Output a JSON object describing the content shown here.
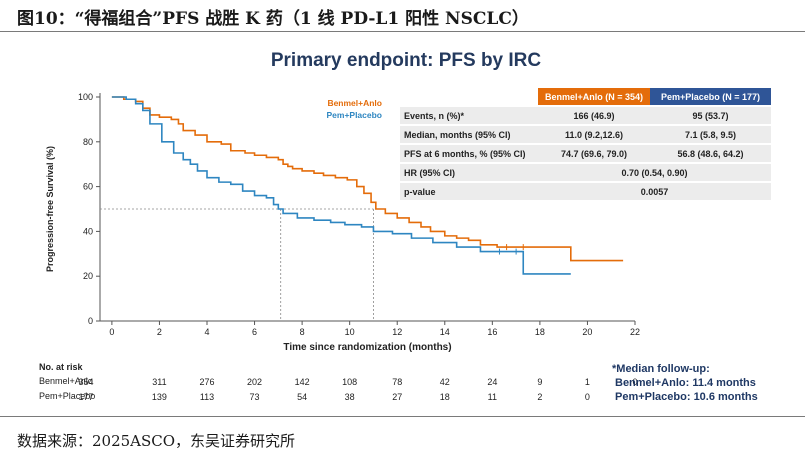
{
  "figure_title": "图10：“得福组合”PFS 战胜 K 药（1 线 PD-L1 阳性 NSCLC）",
  "source": "数据来源：2025ASCO，东吴证券研究所",
  "chart_data": {
    "type": "line",
    "title": "Primary endpoint: PFS by IRC",
    "xlabel": "Time since randomization (months)",
    "ylabel": "Progression-free Survival (%)",
    "xlim": [
      -0.5,
      22
    ],
    "ylim": [
      0,
      100
    ],
    "x_ticks": [
      0,
      2,
      4,
      6,
      8,
      10,
      12,
      14,
      16,
      18,
      20,
      22
    ],
    "y_ticks": [
      0,
      20,
      40,
      60,
      80,
      100
    ],
    "colors": {
      "Benmel+Anlo": "#e46c0a",
      "Pem+Placebo": "#2e86c1"
    },
    "legend": {
      "position": "top-right",
      "entries": [
        "Benmel+Anlo",
        "Pem+Placebo"
      ]
    },
    "reference_lines": {
      "y": 50,
      "medians_x": [
        7.1,
        11.0
      ]
    },
    "series": [
      {
        "name": "Benmel+Anlo",
        "step_points": [
          [
            0,
            100
          ],
          [
            0.5,
            99
          ],
          [
            1,
            98
          ],
          [
            1.3,
            95
          ],
          [
            1.6,
            92
          ],
          [
            2,
            91
          ],
          [
            2.5,
            90
          ],
          [
            2.8,
            88
          ],
          [
            3,
            85
          ],
          [
            3.5,
            83
          ],
          [
            4,
            80
          ],
          [
            4.6,
            79
          ],
          [
            5,
            76
          ],
          [
            5.6,
            75
          ],
          [
            6,
            74
          ],
          [
            6.5,
            73
          ],
          [
            7,
            72
          ],
          [
            7.2,
            70
          ],
          [
            7.4,
            69
          ],
          [
            7.6,
            68
          ],
          [
            8,
            67
          ],
          [
            8.5,
            66
          ],
          [
            8.9,
            65
          ],
          [
            9.4,
            64
          ],
          [
            9.9,
            63
          ],
          [
            10.3,
            60
          ],
          [
            10.6,
            57
          ],
          [
            10.9,
            53
          ],
          [
            11.1,
            50
          ],
          [
            11.5,
            48
          ],
          [
            12,
            46
          ],
          [
            12.5,
            44
          ],
          [
            13,
            42
          ],
          [
            13.4,
            40
          ],
          [
            14,
            38
          ],
          [
            14.5,
            37
          ],
          [
            15,
            36
          ],
          [
            15.5,
            34
          ],
          [
            16.2,
            33
          ],
          [
            19.3,
            33
          ],
          [
            19.3,
            27
          ],
          [
            21.5,
            27
          ]
        ]
      },
      {
        "name": "Pem+Placebo",
        "step_points": [
          [
            0,
            100
          ],
          [
            0.6,
            99
          ],
          [
            1,
            97
          ],
          [
            1.3,
            94
          ],
          [
            1.6,
            88
          ],
          [
            2.1,
            80
          ],
          [
            2.6,
            75
          ],
          [
            3,
            72
          ],
          [
            3.3,
            70
          ],
          [
            3.6,
            67
          ],
          [
            4,
            64
          ],
          [
            4.5,
            62
          ],
          [
            5,
            61
          ],
          [
            5.5,
            58
          ],
          [
            6,
            56
          ],
          [
            6.5,
            55
          ],
          [
            6.8,
            52
          ],
          [
            7,
            50
          ],
          [
            7.2,
            48
          ],
          [
            7.8,
            46
          ],
          [
            8.5,
            45
          ],
          [
            9.2,
            44
          ],
          [
            9.8,
            43
          ],
          [
            10.5,
            42
          ],
          [
            11,
            40
          ],
          [
            11.8,
            39
          ],
          [
            12.6,
            37
          ],
          [
            13.5,
            35
          ],
          [
            14.5,
            33
          ],
          [
            15.5,
            31
          ],
          [
            17.3,
            31
          ],
          [
            17.3,
            21
          ],
          [
            19.3,
            21
          ]
        ]
      }
    ],
    "censor_marks": {
      "Benmel+Anlo": [
        16.6,
        17.3
      ],
      "Pem+Placebo": [
        16.3,
        17.0
      ]
    }
  },
  "summary_table": {
    "headers": [
      "Benmel+Anlo (N  = 354)",
      "Pem+Placebo (N = 177)"
    ],
    "rows": [
      {
        "label": "Events, n (%)*",
        "a": "166 (46.9)",
        "b": "95 (53.7)"
      },
      {
        "label": "Median, months (95% CI)",
        "a": "11.0 (9.2,12.6)",
        "b": "7.1 (5.8, 9.5)"
      },
      {
        "label": "PFS at 6 months, % (95% CI)",
        "a": "74.7 (69.6, 79.0)",
        "b": "56.8 (48.6, 64.2)"
      }
    ],
    "hr": {
      "label": "HR (95% CI)",
      "value": "0.70 (0.54, 0.90)"
    },
    "pvalue": {
      "label": "p-value",
      "value": "0.0057"
    }
  },
  "risk_table": {
    "title": "No. at risk",
    "rows": [
      {
        "label": "Benmel+Anlo",
        "values": [
          "354",
          "311",
          "276",
          "202",
          "142",
          "108",
          "78",
          "42",
          "24",
          "9",
          "1",
          "0"
        ]
      },
      {
        "label": "Pem+Placebo",
        "values": [
          "177",
          "139",
          "113",
          "73",
          "54",
          "38",
          "27",
          "18",
          "11",
          "2",
          "0",
          ""
        ]
      }
    ]
  },
  "followup": {
    "title": "*Median follow-up:",
    "lines": [
      "Benmel+Anlo: 11.4 months",
      "Pem+Placebo: 10.6 months"
    ]
  }
}
